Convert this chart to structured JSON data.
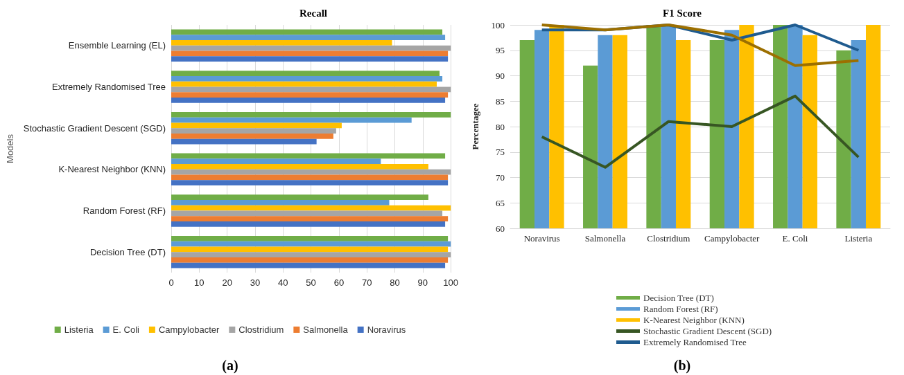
{
  "chart_data": [
    {
      "type": "bar",
      "title": "Recall",
      "orientation": "horizontal",
      "ylabel": "Models",
      "categories": [
        "Ensemble Learning (EL)",
        "Extremely Randomised Tree",
        "Stochastic Gradient Descent (SGD)",
        "K-Nearest Neighbor (KNN)",
        "Random Forest (RF)",
        "Decision Tree (DT)"
      ],
      "series": [
        {
          "name": "Listeria",
          "color": "#70ad47",
          "values": [
            97,
            96,
            100,
            98,
            92,
            99
          ]
        },
        {
          "name": "E. Coli",
          "color": "#5b9bd5",
          "values": [
            98,
            97,
            86,
            75,
            78,
            100
          ]
        },
        {
          "name": "Campylobacter",
          "color": "#ffc000",
          "values": [
            79,
            95,
            61,
            92,
            100,
            99
          ]
        },
        {
          "name": "Clostridium",
          "color": "#a5a5a5",
          "values": [
            100,
            100,
            59,
            100,
            97,
            100
          ]
        },
        {
          "name": "Salmonella",
          "color": "#ed7d31",
          "values": [
            99,
            99,
            58,
            99,
            99,
            99
          ]
        },
        {
          "name": "Noravirus",
          "color": "#4472c4",
          "values": [
            99,
            98,
            52,
            99,
            98,
            98
          ]
        }
      ],
      "xlim": [
        0,
        100
      ],
      "xticks": [
        0,
        10,
        20,
        30,
        40,
        50,
        60,
        70,
        80,
        90,
        100
      ],
      "grid": "x",
      "legend": "bottom",
      "annotations": [
        "(a)"
      ]
    },
    {
      "type": "bar",
      "title": "F1 Score",
      "ylabel": "Percentagee",
      "categories": [
        "Noravirus",
        "Salmonella",
        "Clostridium",
        "Campylobacter",
        "E. Coli",
        "Listeria"
      ],
      "series": [
        {
          "name": "Decision Tree (DT)",
          "color": "#70ad47",
          "values": [
            97,
            92,
            100,
            97,
            100,
            95
          ]
        },
        {
          "name": "Random Forest (RF)",
          "color": "#5b9bd5",
          "values": [
            99,
            98,
            100,
            99,
            100,
            97
          ]
        },
        {
          "name": "K-Nearest Neighbor (KNN)",
          "color": "#ffc000",
          "values": [
            100,
            98,
            97,
            100,
            98,
            100
          ]
        },
        {
          "name": "Stochastic Gradient Descent (SGD)",
          "type": "line",
          "color": "#375623",
          "values": [
            78,
            72,
            81,
            80,
            86,
            74
          ]
        },
        {
          "name": "Extremely Randomised Tree",
          "type": "line",
          "color": "#1f5b8f",
          "values": [
            99,
            99,
            100,
            97,
            100,
            95
          ]
        },
        {
          "type": "line",
          "color": "#9c6f00",
          "values": [
            100,
            99,
            100,
            98,
            92,
            93
          ]
        }
      ],
      "ylim": [
        60,
        100
      ],
      "yticks": [
        60,
        65,
        70,
        75,
        80,
        85,
        90,
        95,
        100
      ],
      "grid": "y",
      "legend": "bottom",
      "marker": "none",
      "annotations": [
        "(b)"
      ]
    }
  ]
}
